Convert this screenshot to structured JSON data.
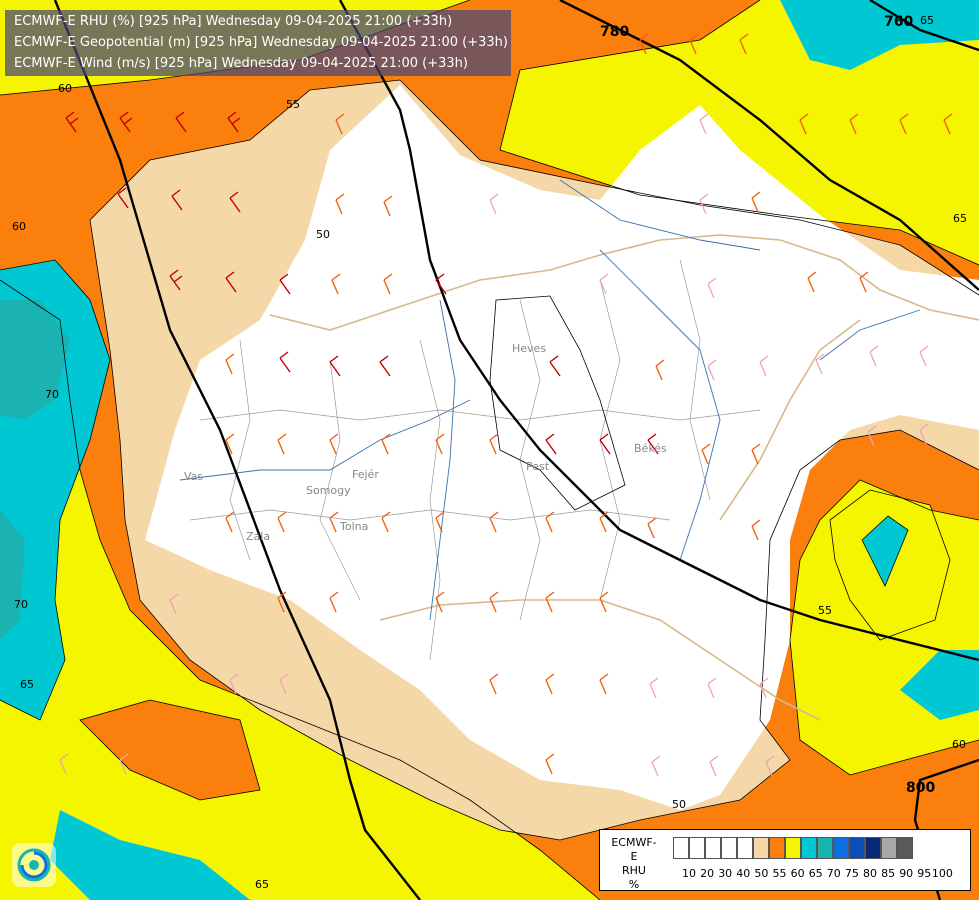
{
  "titles": [
    "ECMWF-E RHU (%) [925 hPa] Wednesday 09-04-2025 21:00 (+33h)",
    "ECMWF-E Geopotential (m) [925 hPa] Wednesday 09-04-2025 21:00 (+33h)",
    "ECMWF-E Wind (m/s) [925 hPa] Wednesday 09-04-2025 21:00 (+33h)"
  ],
  "legend": {
    "model": "ECMWF-E",
    "variable": "RHU",
    "unit": "%",
    "levels": [
      "10",
      "20",
      "30",
      "40",
      "50",
      "55",
      "60",
      "65",
      "70",
      "75",
      "80",
      "85",
      "90",
      "95",
      "100"
    ],
    "colors": [
      "#ffffff",
      "#ffffff",
      "#ffffff",
      "#ffffff",
      "#ffffff",
      "#f5d8a8",
      "#fb7f0c",
      "#f5f500",
      "#00c8d2",
      "#1bb2b2",
      "#0a6fe0",
      "#0a4fb8",
      "#0a2a78",
      "#a8a8a8",
      "#5a5a5a"
    ]
  },
  "contour_labels": {
    "rhu": [
      "55",
      "50",
      "60",
      "65",
      "70",
      "70",
      "65",
      "55",
      "60",
      "50",
      "65",
      "60",
      "65"
    ],
    "geopotential": [
      "780",
      "760",
      "800"
    ]
  },
  "region_labels": [
    "Vas",
    "Zala",
    "Somogy",
    "Fejér",
    "Tolna",
    "Pest",
    "Heves",
    "Békés"
  ],
  "colors": {
    "white": "#ffffff",
    "rhu55": "#f5d8a8",
    "rhu60": "#fb7f0c",
    "rhu65": "#f5f500",
    "rhu70": "#00c8d2",
    "rhu75": "#1bb2b2",
    "border": "#d6b98a",
    "river": "#3a6fb0"
  }
}
